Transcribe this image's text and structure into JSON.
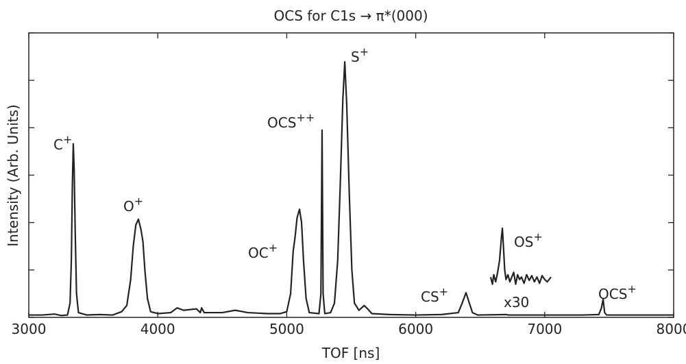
{
  "chart_data": {
    "type": "line",
    "title": "OCS for C1s → π*(000)",
    "xlabel": "TOF [ns]",
    "ylabel": "Intensity (Arb. Units)",
    "xlim": [
      3000,
      8000
    ],
    "xticks": [
      3000,
      4000,
      5000,
      6000,
      7000,
      8000
    ],
    "ylim": [
      0,
      6
    ],
    "yticks": [
      0,
      1,
      2,
      3,
      4,
      5,
      6
    ],
    "ytick_labels": false,
    "grid": false,
    "series": [
      {
        "color": "#222222",
        "x": [
          3000,
          3100,
          3200,
          3250,
          3300,
          3320,
          3330,
          3338,
          3345,
          3352,
          3360,
          3370,
          3385,
          3450,
          3550,
          3650,
          3720,
          3760,
          3790,
          3810,
          3830,
          3850,
          3870,
          3885,
          3900,
          3920,
          3945,
          4000,
          4100,
          4150,
          4200,
          4300,
          4330,
          4340,
          4360,
          4500,
          4600,
          4700,
          4850,
          4950,
          5000,
          5030,
          5050,
          5065,
          5080,
          5099,
          5115,
          5130,
          5150,
          5175,
          5250,
          5265,
          5274,
          5282,
          5295,
          5340,
          5370,
          5395,
          5415,
          5435,
          5450,
          5465,
          5485,
          5505,
          5525,
          5560,
          5600,
          5620,
          5660,
          5800,
          6000,
          6200,
          6330,
          6360,
          6390,
          6410,
          6440,
          6480,
          6700,
          6720,
          7000,
          7300,
          7420,
          7440,
          7453,
          7465,
          7480,
          7700,
          8000
        ],
        "values": [
          0.05,
          0.05,
          0.07,
          0.04,
          0.05,
          0.3,
          1.2,
          2.8,
          3.66,
          3.1,
          1.8,
          0.5,
          0.1,
          0.05,
          0.06,
          0.05,
          0.12,
          0.25,
          0.8,
          1.5,
          1.95,
          2.07,
          1.85,
          1.6,
          1.0,
          0.4,
          0.12,
          0.08,
          0.1,
          0.2,
          0.15,
          0.18,
          0.1,
          0.2,
          0.1,
          0.1,
          0.15,
          0.1,
          0.08,
          0.08,
          0.12,
          0.5,
          1.4,
          1.7,
          2.1,
          2.28,
          2.0,
          1.2,
          0.4,
          0.1,
          0.08,
          0.5,
          3.95,
          0.5,
          0.08,
          0.1,
          0.3,
          1.2,
          2.8,
          4.6,
          5.39,
          4.5,
          2.6,
          1.0,
          0.3,
          0.15,
          0.25,
          0.2,
          0.08,
          0.06,
          0.05,
          0.06,
          0.1,
          0.3,
          0.52,
          0.35,
          0.1,
          0.05,
          0.06,
          0.05,
          0.05,
          0.05,
          0.06,
          0.2,
          0.38,
          0.1,
          0.05,
          0.05,
          0.05
        ]
      },
      {
        "color": "#222222",
        "x": [
          6581,
          6595,
          6605,
          6620,
          6635,
          6650,
          6665,
          6672,
          6680,
          6690,
          6700,
          6715,
          6730,
          6745,
          6760,
          6775,
          6790,
          6805,
          6820,
          6840,
          6860,
          6880,
          6900,
          6920,
          6940,
          6960,
          6980,
          7000,
          7020,
          7049
        ],
        "values": [
          0.85,
          0.7,
          0.9,
          0.75,
          0.95,
          1.2,
          1.7,
          1.88,
          1.5,
          1.0,
          0.8,
          0.9,
          0.75,
          0.85,
          0.95,
          0.7,
          0.9,
          0.8,
          0.85,
          0.72,
          0.9,
          0.78,
          0.88,
          0.75,
          0.85,
          0.72,
          0.88,
          0.8,
          0.75,
          0.85
        ]
      }
    ],
    "annotations": [
      {
        "text": "C",
        "sup": "+"
      },
      {
        "text": "O",
        "sup": "+"
      },
      {
        "text": "OCS",
        "sup": "++"
      },
      {
        "text": "S",
        "sup": "+"
      },
      {
        "text": "OC",
        "sup": "+"
      },
      {
        "text": "CS",
        "sup": "+"
      },
      {
        "text": "OS",
        "sup": "+"
      },
      {
        "text": "x30"
      },
      {
        "text": "OCS",
        "sup": "+"
      }
    ]
  }
}
